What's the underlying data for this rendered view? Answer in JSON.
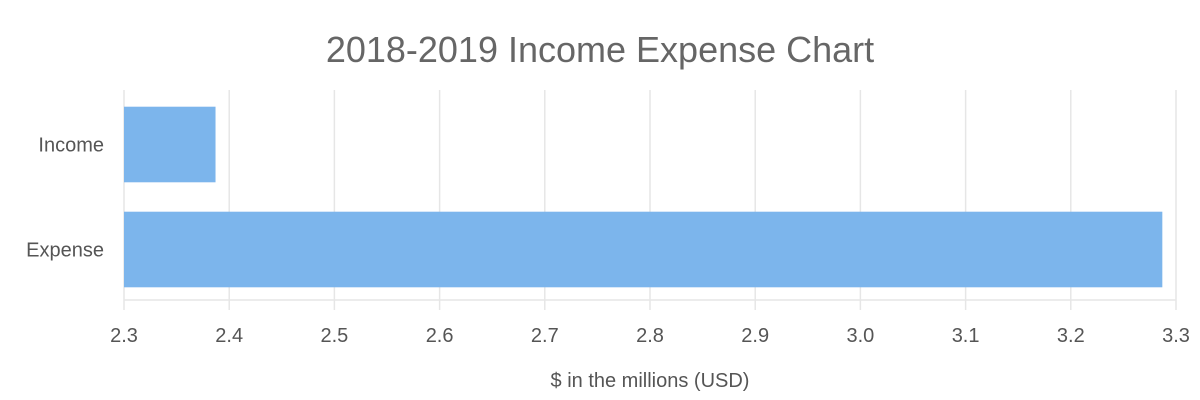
{
  "chart_data": {
    "type": "bar",
    "orientation": "horizontal",
    "title": "2018-2019 Income Expense Chart",
    "xlabel": "$ in the millions (USD)",
    "ylabel": "",
    "categories": [
      "Income",
      "Expense"
    ],
    "values": [
      2.387,
      3.287
    ],
    "xlim": [
      2.3,
      3.3
    ],
    "ticks": [
      "2.3",
      "2.4",
      "2.5",
      "2.6",
      "2.7",
      "2.8",
      "2.9",
      "3.0",
      "3.1",
      "3.2",
      "3.3"
    ],
    "grid": true,
    "legend": "none",
    "colors": {
      "bar_fill": "#7cb5ec",
      "grid": "#e6e6e6",
      "text": "#555555",
      "title": "#666666"
    }
  }
}
